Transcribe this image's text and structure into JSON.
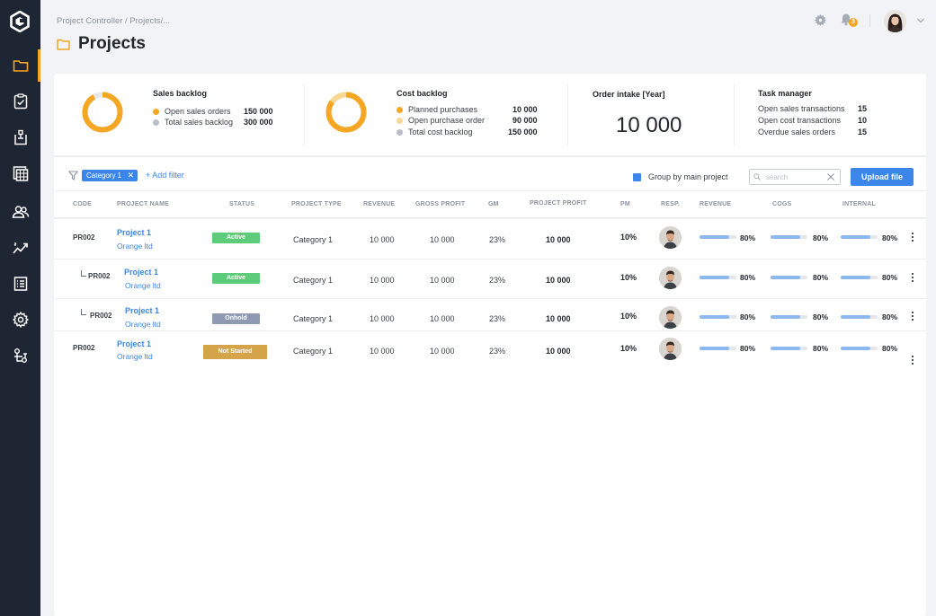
{
  "breadcrumb": "Project Controller / Projects/...",
  "page_title": "Projects",
  "notifications": {
    "count": "3"
  },
  "sidebar": {
    "items": [
      {
        "icon": "folder-icon",
        "active": true
      },
      {
        "icon": "clipboard-check-icon"
      },
      {
        "icon": "clipboard-list-icon"
      },
      {
        "icon": "calculator-icon"
      },
      {
        "icon": "users-icon"
      },
      {
        "icon": "trend-chart-icon"
      },
      {
        "icon": "list-document-icon"
      },
      {
        "icon": "gear-icon"
      },
      {
        "icon": "hierarchy-icon"
      }
    ]
  },
  "cards": {
    "sales_backlog": {
      "title": "Sales backlog",
      "legend": [
        {
          "label": "Open sales orders",
          "value": "150 000",
          "color": "#f5a623"
        },
        {
          "label": "Total sales backlog",
          "value": "300 000",
          "color": "#b8bec9"
        }
      ],
      "donut_fraction": 0.92
    },
    "cost_backlog": {
      "title": "Cost backlog",
      "legend": [
        {
          "label": "Planned purchases",
          "value": "10 000",
          "color": "#f5a623"
        },
        {
          "label": "Open purchase order",
          "value": "90 000",
          "color": "#f8d694"
        },
        {
          "label": "Total cost backlog",
          "value": "150 000",
          "color": "#b8bec9"
        }
      ],
      "donut_fraction": 0.85
    },
    "order_intake": {
      "title": "Order intake [Year]",
      "value": "10 000"
    },
    "task_manager": {
      "title": "Task manager",
      "rows": [
        {
          "label": "Open sales transactions",
          "value": "15"
        },
        {
          "label": "Open cost transactions",
          "value": "10"
        },
        {
          "label": "Overdue sales orders",
          "value": "15"
        }
      ]
    }
  },
  "filters": {
    "chip": "Category 1",
    "add_filter": "+ Add filter",
    "group_by_label": "Group by main project",
    "group_by_checked": true,
    "search_placeholder": "search",
    "upload_label": "Upload file"
  },
  "table": {
    "columns": [
      "CODE",
      "PROJECT NAME",
      "STATUS",
      "PROJECT TYPE",
      "REVENUE",
      "GROSS PROFIT",
      "GM",
      "PROJECT PROFIT",
      "PM",
      "RESP.",
      "REVENUE",
      "COGS",
      "INTERNAL"
    ],
    "rows": [
      {
        "code": "PR002",
        "name": "Project 1",
        "company": "Orange ltd",
        "status": "Active",
        "status_color": "#5dcc7a",
        "type": "Category 1",
        "revenue": "10 000",
        "gross_profit": "10 000",
        "gm": "23%",
        "project_profit": "10 000",
        "pm": "10%",
        "revenue_progress": 0.8,
        "cogs_progress": 0.8,
        "internal_progress": 0.8,
        "revenue_pct": "80%",
        "cogs_pct": "80%",
        "internal_pct": "80%"
      },
      {
        "code": "PR002",
        "name": "Project 1",
        "company": "Orange ltd",
        "status": "Active",
        "status_color": "#5dcc7a",
        "type": "Category 1",
        "revenue": "10 000",
        "gross_profit": "10 000",
        "gm": "23%",
        "project_profit": "10 000",
        "pm": "10%",
        "revenue_progress": 0.8,
        "cogs_progress": 0.8,
        "internal_progress": 0.8,
        "revenue_pct": "80%",
        "cogs_pct": "80%",
        "internal_pct": "80%"
      },
      {
        "code": "PR002",
        "name": "Project 1",
        "company": "Orange ltd",
        "status": "Onhold",
        "status_color": "#8f99b3",
        "type": "Category 1",
        "revenue": "10 000",
        "gross_profit": "10 000",
        "gm": "23%",
        "project_profit": "10 000",
        "pm": "10%",
        "revenue_progress": 0.8,
        "cogs_progress": 0.8,
        "internal_progress": 0.8,
        "revenue_pct": "80%",
        "cogs_pct": "80%",
        "internal_pct": "80%"
      },
      {
        "code": "PR002",
        "name": "Project 1",
        "company": "Orange ltd",
        "status": "Not Started",
        "status_color": "#d4a34a",
        "type": "Category 1",
        "revenue": "10 000",
        "gross_profit": "10 000",
        "gm": "23%",
        "project_profit": "10 000",
        "pm": "10%",
        "revenue_progress": 0.8,
        "cogs_progress": 0.8,
        "internal_progress": 0.8,
        "revenue_pct": "80%",
        "cogs_pct": "80%",
        "internal_pct": "80%"
      }
    ]
  }
}
